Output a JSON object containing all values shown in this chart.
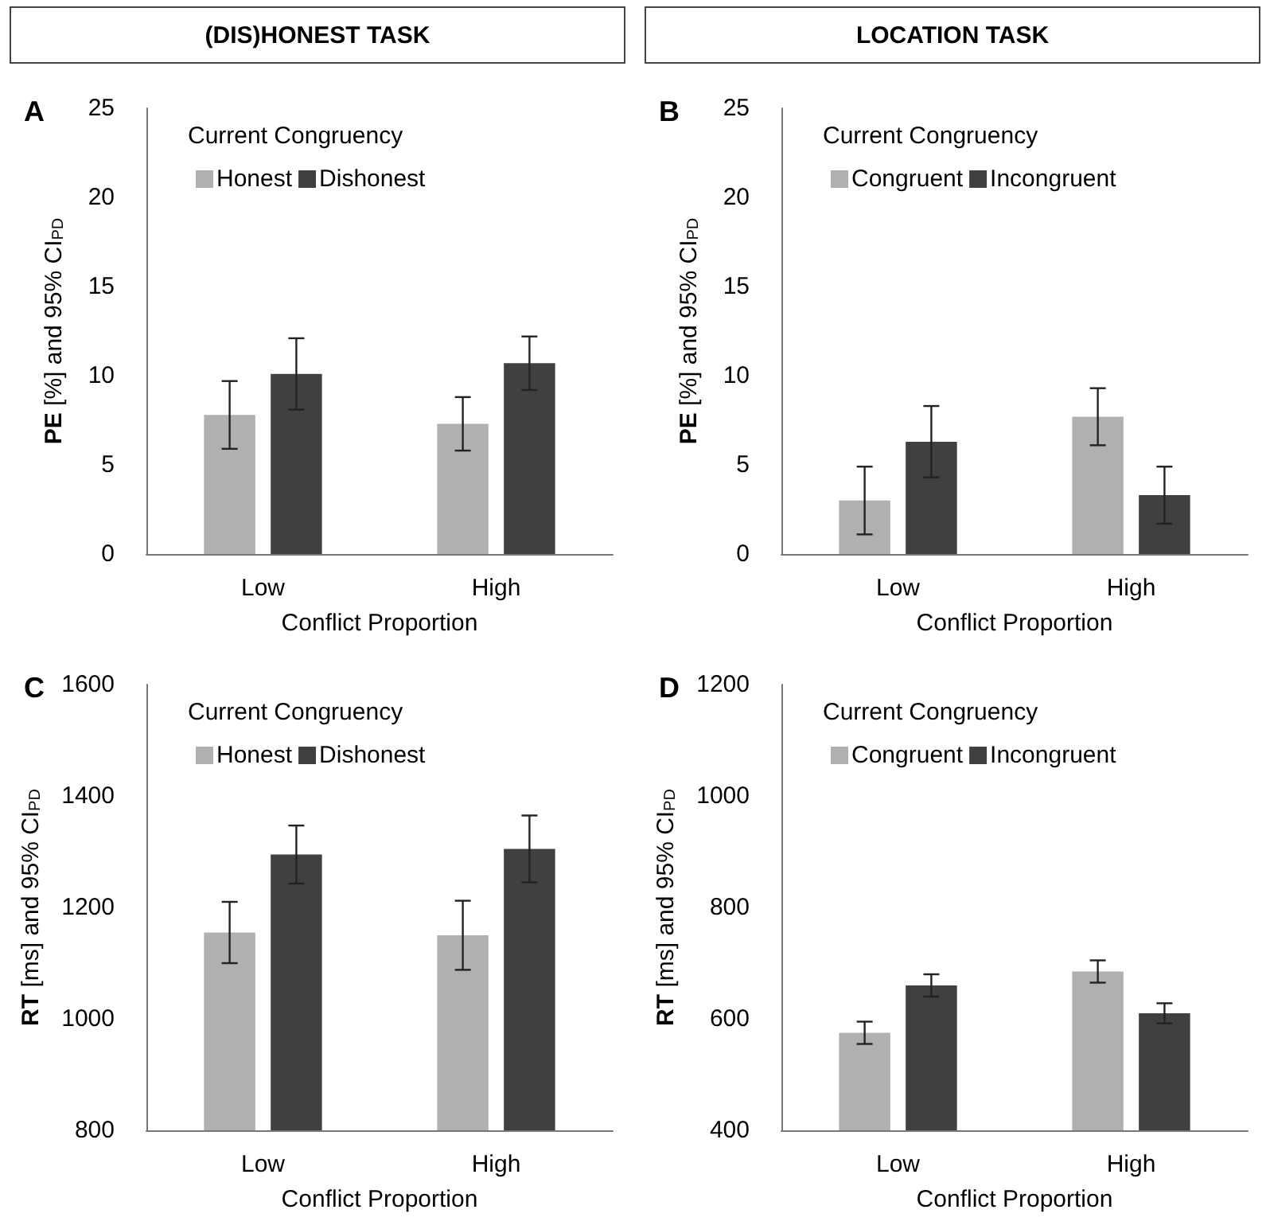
{
  "chart_data": [
    {
      "type": "bar",
      "title": "A",
      "annotations": [
        "(DIS)HONEST TASK"
      ],
      "xlabel": "Conflict Proportion",
      "ylabel": "PE [%] and 95% CI$_{PD}$",
      "legend_title": "Current Congruency",
      "legend": "top",
      "grid": false,
      "categories": [
        "Low",
        "High"
      ],
      "ylim": [
        0,
        25
      ],
      "yticks": [
        0,
        5,
        10,
        15,
        20,
        25
      ],
      "series": [
        {
          "name": "Honest",
          "color": "#b0b0b0",
          "values": [
            7.8,
            7.3
          ],
          "errors": [
            1.9,
            1.5
          ]
        },
        {
          "name": "Dishonest",
          "color": "#404040",
          "values": [
            10.1,
            10.7
          ],
          "errors": [
            2.0,
            1.5
          ]
        }
      ]
    },
    {
      "type": "bar",
      "title": "B",
      "annotations": [
        "LOCATION TASK"
      ],
      "xlabel": "Conflict Proportion",
      "ylabel": "PE [%] and 95% CI$_{PD}$",
      "legend_title": "Current Congruency",
      "legend": "top",
      "grid": false,
      "categories": [
        "Low",
        "High"
      ],
      "ylim": [
        0,
        25
      ],
      "yticks": [
        0,
        5,
        10,
        15,
        20,
        25
      ],
      "series": [
        {
          "name": "Congruent",
          "color": "#b0b0b0",
          "values": [
            3.0,
            7.7
          ],
          "errors": [
            1.9,
            1.6
          ]
        },
        {
          "name": "Incongruent",
          "color": "#404040",
          "values": [
            6.3,
            3.3
          ],
          "errors": [
            2.0,
            1.6
          ]
        }
      ]
    },
    {
      "type": "bar",
      "title": "C",
      "xlabel": "Conflict Proportion",
      "ylabel": "RT [ms] and 95% CI$_{PD}$",
      "legend_title": "Current Congruency",
      "legend": "top",
      "grid": false,
      "categories": [
        "Low",
        "High"
      ],
      "ylim": [
        800,
        1600
      ],
      "yticks": [
        800,
        1000,
        1200,
        1400,
        1600
      ],
      "series": [
        {
          "name": "Honest",
          "color": "#b0b0b0",
          "values": [
            1155,
            1150
          ],
          "errors": [
            55,
            62
          ]
        },
        {
          "name": "Dishonest",
          "color": "#404040",
          "values": [
            1295,
            1305
          ],
          "errors": [
            52,
            60
          ]
        }
      ]
    },
    {
      "type": "bar",
      "title": "D",
      "xlabel": "Conflict Proportion",
      "ylabel": "RT [ms] and 95% CI$_{PD}$",
      "legend_title": "Current Congruency",
      "legend": "top",
      "grid": false,
      "categories": [
        "Low",
        "High"
      ],
      "ylim": [
        400,
        1200
      ],
      "yticks": [
        400,
        600,
        800,
        1000,
        1200
      ],
      "series": [
        {
          "name": "Congruent",
          "color": "#b0b0b0",
          "values": [
            575,
            685
          ],
          "errors": [
            20,
            20
          ]
        },
        {
          "name": "Incongruent",
          "color": "#404040",
          "values": [
            660,
            610
          ],
          "errors": [
            20,
            18
          ]
        }
      ]
    }
  ]
}
